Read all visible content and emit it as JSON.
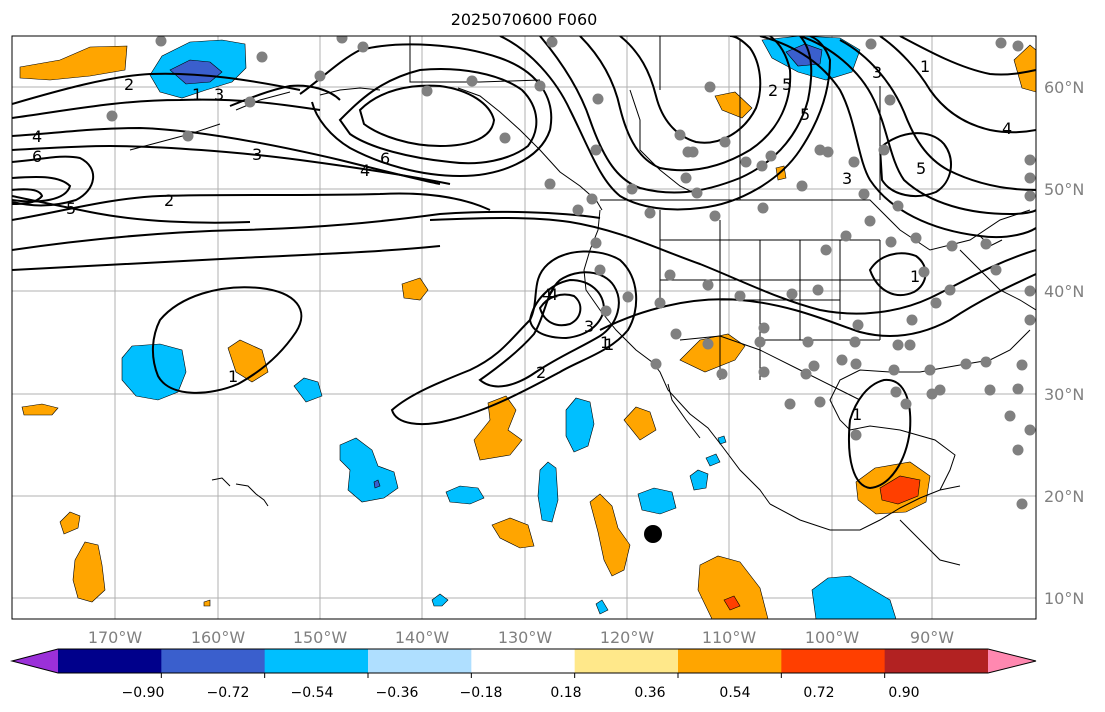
{
  "title": "2025070600 F060",
  "map": {
    "lon_labels": [
      "170°W",
      "160°W",
      "150°W",
      "140°W",
      "130°W",
      "120°W",
      "110°W",
      "100°W",
      "90°W"
    ],
    "lat_labels": [
      "60°N",
      "50°N",
      "40°N",
      "30°N",
      "20°N",
      "10°N"
    ],
    "contour_labels": [
      "2",
      "1",
      "3",
      "4",
      "6",
      "5",
      "3",
      "4",
      "6",
      "2",
      "5",
      "2",
      "3",
      "4",
      "5",
      "3",
      "1",
      "5",
      "4",
      "1",
      "1",
      "4",
      "3",
      "1",
      "2",
      "1",
      "1"
    ]
  },
  "colorbar": {
    "ticks": [
      "−0.90",
      "−0.72",
      "−0.54",
      "−0.36",
      "−0.18",
      "0.18",
      "0.36",
      "0.54",
      "0.72",
      "0.90"
    ],
    "colors": [
      "#9b30d9",
      "#00008b",
      "#3a5fcd",
      "#00bfff",
      "#afdfff",
      "#ffffff",
      "#ffe88a",
      "#ffa500",
      "#ff3f00",
      "#b22222",
      "#ff88b0"
    ]
  },
  "colors": {
    "grid": "#b0b0b0",
    "coast": "#000000",
    "station_dot": "#808080",
    "marker": "#000000"
  }
}
